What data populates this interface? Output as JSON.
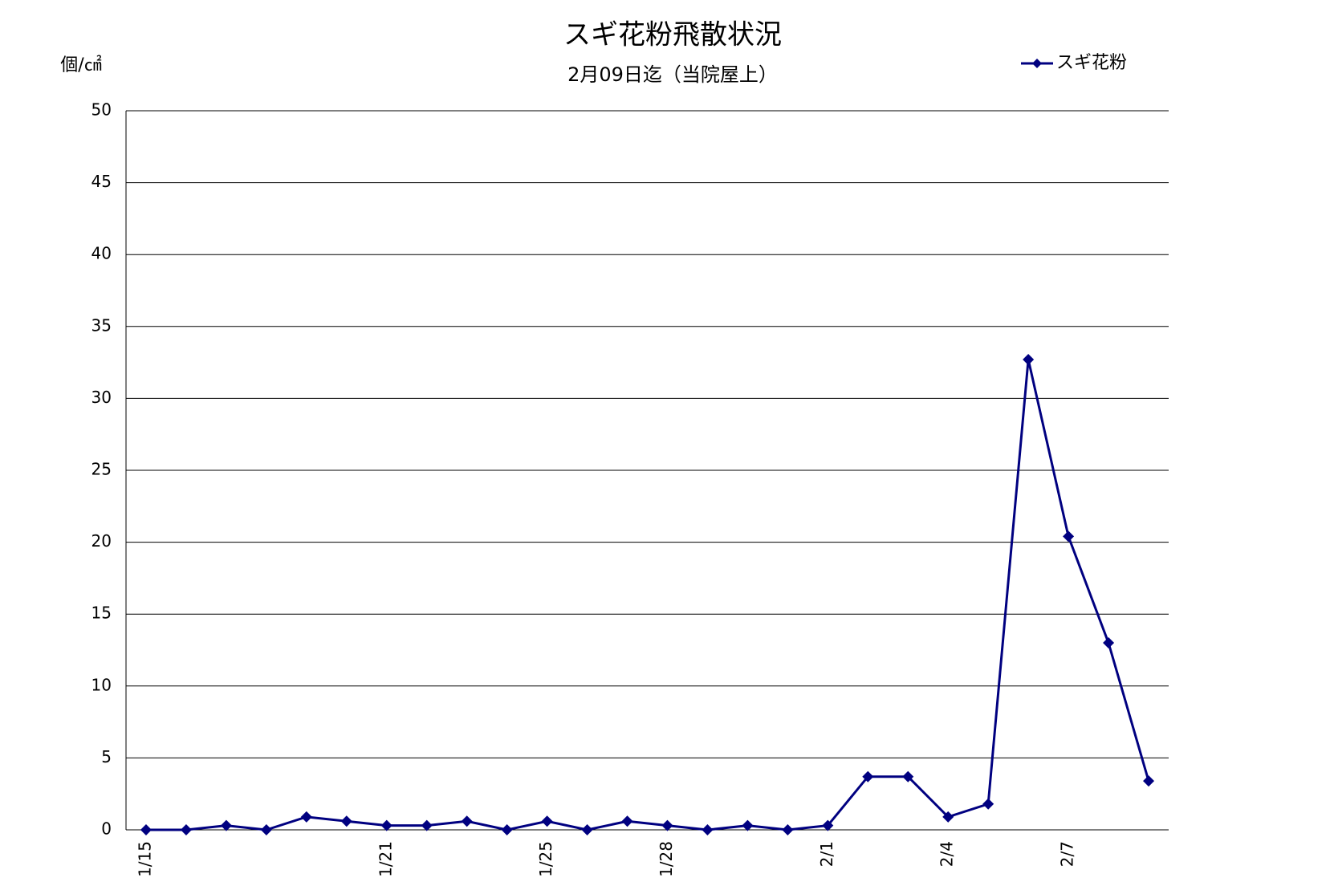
{
  "chart_data": {
    "type": "line",
    "title": "スギ花粉飛散状況",
    "subtitle": "2月09日迄（当院屋上）",
    "y_label": "個/㎠",
    "categories": [
      "1/15",
      null,
      null,
      null,
      null,
      null,
      "1/21",
      null,
      null,
      null,
      "1/25",
      null,
      null,
      "1/28",
      null,
      null,
      null,
      "2/1",
      null,
      null,
      "2/4",
      null,
      null,
      "2/7",
      null,
      null
    ],
    "series": [
      {
        "name": "スギ花粉",
        "color": "#000080",
        "values": [
          0,
          0,
          0.3,
          0,
          0.9,
          0.6,
          0.3,
          0.3,
          0.6,
          0,
          0.6,
          0,
          0.6,
          0.3,
          0,
          0.3,
          0,
          0.3,
          3.7,
          3.7,
          0.9,
          1.8,
          32.7,
          20.4,
          13,
          3.4
        ]
      }
    ],
    "ylim": [
      0,
      50
    ],
    "yticks": [
      0,
      5,
      10,
      15,
      20,
      25,
      30,
      35,
      40,
      45,
      50
    ],
    "grid": true,
    "legend": "top-right"
  }
}
